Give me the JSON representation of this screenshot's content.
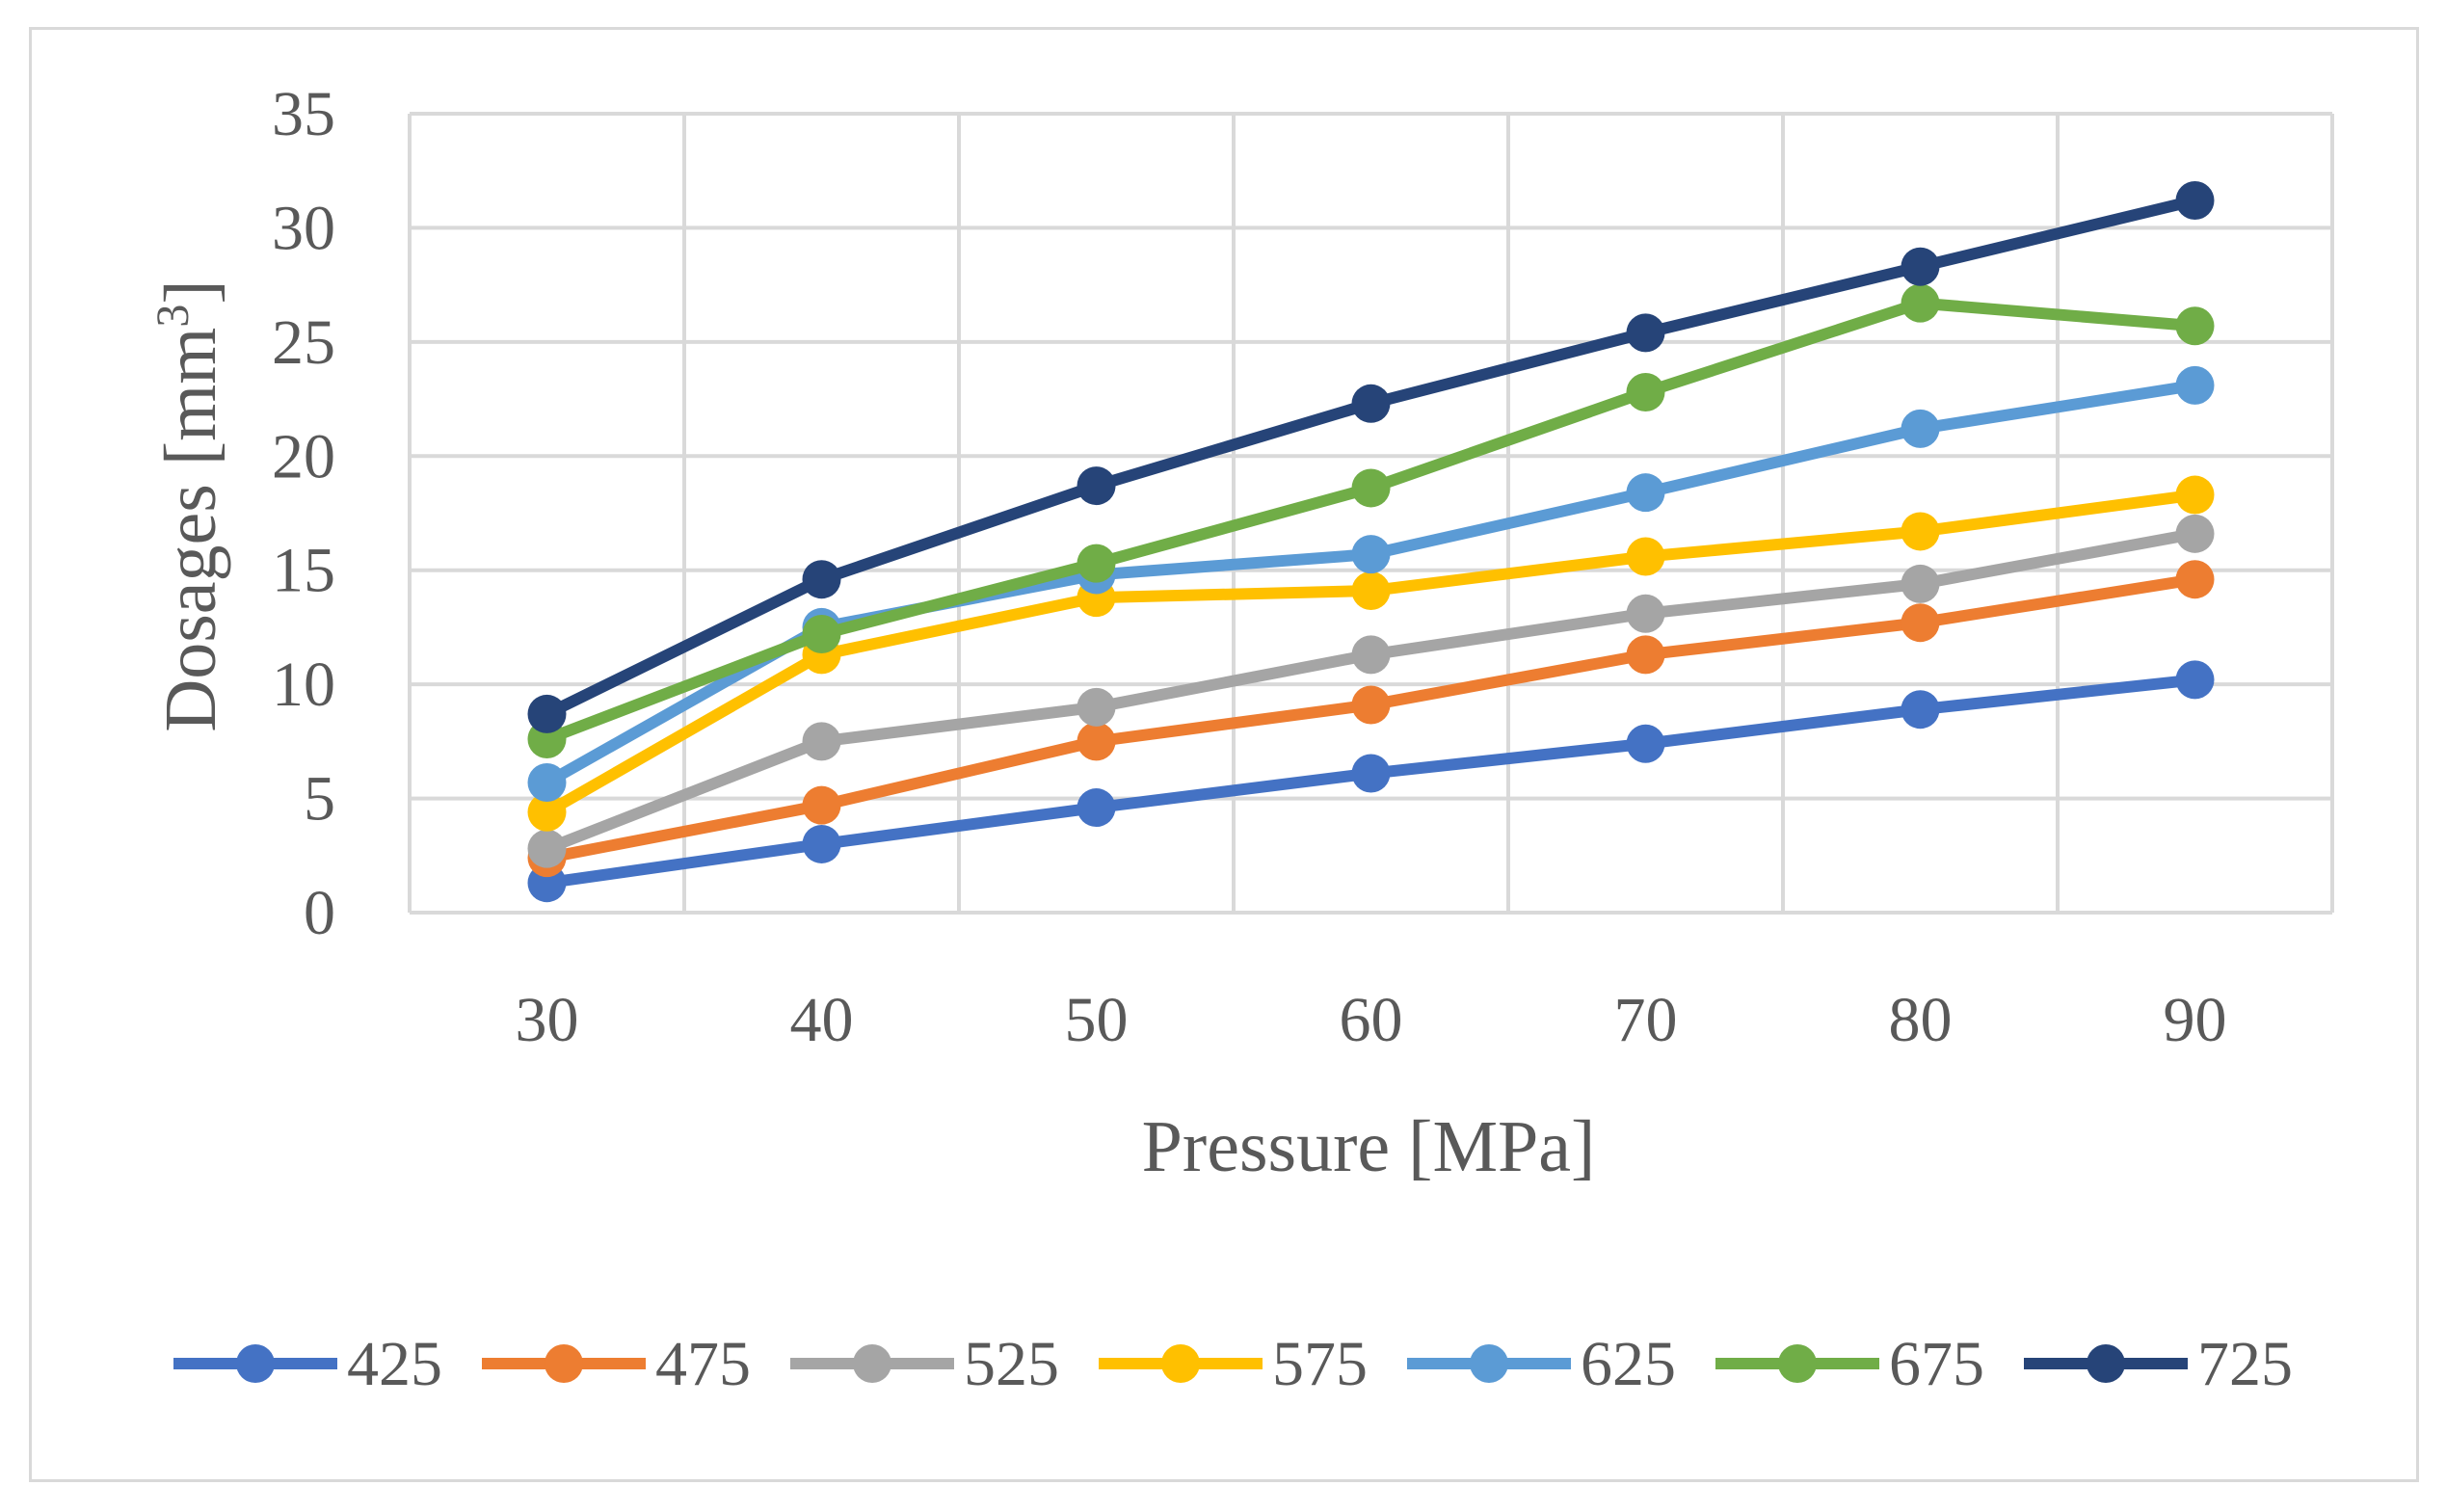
{
  "chart_data": {
    "type": "line",
    "title": "",
    "xlabel": "Pressure [MPa]",
    "ylabel_prefix": "Dosages [mm",
    "ylabel_superscript": "3",
    "ylabel_suffix": "]",
    "x": [
      30,
      40,
      50,
      60,
      70,
      80,
      90
    ],
    "x_tick_labels": [
      "30",
      "40",
      "50",
      "60",
      "70",
      "80",
      "90"
    ],
    "ylim": [
      0,
      35
    ],
    "y_ticks": [
      0,
      5,
      10,
      15,
      20,
      25,
      30,
      35
    ],
    "y_tick_labels": [
      "0",
      "5",
      "10",
      "15",
      "20",
      "25",
      "30",
      "35"
    ],
    "grid": true,
    "legend_position": "bottom",
    "series": [
      {
        "name": "425",
        "color": "#4472C4",
        "values": [
          1.3,
          3.0,
          4.6,
          6.1,
          7.4,
          8.9,
          10.2
        ]
      },
      {
        "name": "475",
        "color": "#ED7D31",
        "values": [
          2.4,
          4.7,
          7.5,
          9.1,
          11.3,
          12.7,
          14.6
        ]
      },
      {
        "name": "525",
        "color": "#A5A5A5",
        "values": [
          2.8,
          7.5,
          9.0,
          11.3,
          13.1,
          14.4,
          16.6
        ]
      },
      {
        "name": "575",
        "color": "#FFC000",
        "values": [
          4.4,
          11.3,
          13.8,
          14.1,
          15.6,
          16.7,
          18.3
        ]
      },
      {
        "name": "625",
        "color": "#5B9BD5",
        "values": [
          5.7,
          12.5,
          14.8,
          15.7,
          18.4,
          21.2,
          23.1
        ]
      },
      {
        "name": "675",
        "color": "#70AD47",
        "values": [
          7.6,
          12.2,
          15.3,
          18.6,
          22.8,
          26.7,
          25.7
        ]
      },
      {
        "name": "725",
        "color": "#264478",
        "values": [
          8.7,
          14.6,
          18.7,
          22.3,
          25.4,
          28.3,
          31.2
        ]
      }
    ]
  }
}
